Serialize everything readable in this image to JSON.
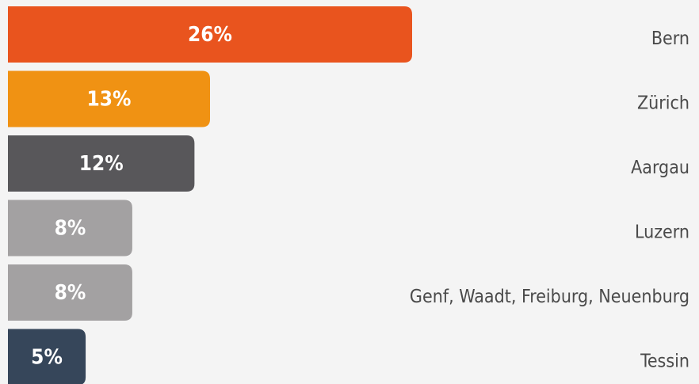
{
  "chart_data": {
    "type": "bar",
    "orientation": "horizontal",
    "categories": [
      "Bern",
      "Zürich",
      "Aargau",
      "Luzern",
      "Genf, Waadt, Freiburg, Neuenburg",
      "Tessin"
    ],
    "values": [
      26,
      13,
      12,
      8,
      8,
      5
    ],
    "value_labels": [
      "26%",
      "13%",
      "12%",
      "8%",
      "8%",
      "5%"
    ],
    "colors": [
      "#e9541e",
      "#f09213",
      "#58575a",
      "#a3a1a2",
      "#a3a1a2",
      "#36465a"
    ]
  }
}
